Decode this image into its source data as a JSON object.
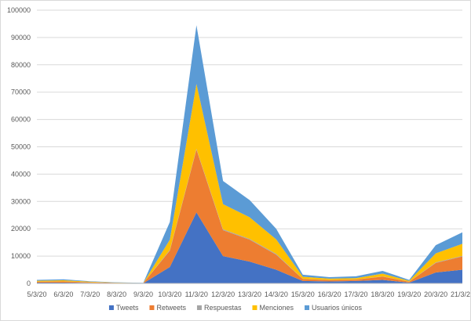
{
  "chart_data": {
    "type": "area",
    "stacked": true,
    "categories": [
      "5/3/20",
      "6/3/20",
      "7/3/20",
      "8/3/20",
      "9/3/20",
      "10/3/20",
      "11/3/20",
      "12/3/20",
      "13/3/20",
      "14/3/20",
      "15/3/20",
      "16/3/20",
      "17/3/20",
      "18/3/20",
      "19/3/20",
      "20/3/20",
      "21/3/20"
    ],
    "series": [
      {
        "name": "Tweets",
        "color": "#4472c4",
        "values": [
          300,
          300,
          200,
          100,
          50,
          6000,
          26000,
          10000,
          8000,
          5000,
          900,
          700,
          900,
          1300,
          300,
          4000,
          5000
        ]
      },
      {
        "name": "Retweets",
        "color": "#ed7d31",
        "values": [
          300,
          400,
          200,
          100,
          50,
          6000,
          23000,
          9500,
          8000,
          5500,
          700,
          500,
          500,
          1200,
          300,
          3500,
          4900
        ]
      },
      {
        "name": "Respuestas",
        "color": "#a5a5a5",
        "values": [
          50,
          50,
          30,
          20,
          10,
          300,
          300,
          300,
          300,
          300,
          50,
          50,
          50,
          80,
          30,
          200,
          200
        ]
      },
      {
        "name": "Menciones",
        "color": "#ffc000",
        "values": [
          300,
          400,
          200,
          80,
          50,
          3700,
          23700,
          9200,
          7900,
          5300,
          800,
          500,
          500,
          1000,
          300,
          3300,
          4400
        ]
      },
      {
        "name": "Usuarios únicos",
        "color": "#5b9bd5",
        "values": [
          350,
          350,
          170,
          100,
          40,
          6500,
          21500,
          8500,
          6300,
          3900,
          750,
          550,
          650,
          1020,
          370,
          3000,
          4200
        ]
      }
    ],
    "ylim": [
      0,
      100000
    ],
    "yticks": [
      "0",
      "10000",
      "20000",
      "30000",
      "40000",
      "50000",
      "60000",
      "70000",
      "80000",
      "90000",
      "100000"
    ],
    "grid": true,
    "legend_position": "bottom"
  }
}
